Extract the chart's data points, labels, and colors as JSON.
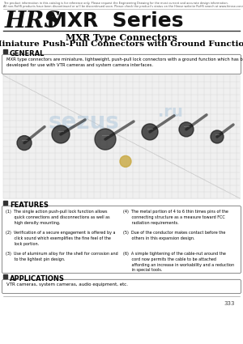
{
  "top_disclaimer_line1": "The product information in this catalog is for reference only. Please request the Engineering Drawing for the most current and accurate design information.",
  "top_disclaimer_line2": "All non-RoHS products have been discontinued or will be discontinued soon. Please check the product's status on the Hirose website RoHS search at www.hirose-connectors.com, or contact your Hirose sales representative.",
  "brand": "HRS",
  "series": "MXR  Series",
  "title1": "MXR Type Connectors",
  "title2": "Miniature Push-Pull Connectors with Ground Function",
  "section_general": "GENERAL",
  "general_text": "MXR type connectors are miniature, lightweight, push-pull lock connectors with a ground function which has been\ndeveloped for use with VTR cameras and system camera interfaces.",
  "section_features": "FEATURES",
  "feat1_1": "(1)  The single action push-pull lock function allows\n       quick connections and disconnections as well as\n       high density mounting.",
  "feat1_2": "(2)  Verification of a secure engagement is offered by a\n       click sound which exemplifies the fine feel of the\n       lock portion.",
  "feat1_3": "(3)  Use of aluminum alloy for the shell for corrosion and\n       to the lightest pin design.",
  "feat2_1": "(4)  The metal portion of 4 to 6 thin times pins of the\n       connecting structure as a measure toward FCC\n       radiation requirements.",
  "feat2_2": "(5)  Due of the conductor makes contact before the\n       others in this expansion design.",
  "feat2_3": "(6)  A simple tightening of the cable-nut around the\n       cord now permits the cable to be attached\n       affording an increase in workability and a reduction\n       in special tools.",
  "section_applications": "APPLICATIONS",
  "applications_text": "VTR cameras, system cameras, audio equipment, etc.",
  "page_number": "333",
  "bg_color": "#ffffff",
  "text_color": "#000000",
  "dark_text": "#111111",
  "gray_text": "#555555",
  "border_color": "#666666",
  "section_bg": "#333333",
  "line_color": "#888888",
  "watermark_blue": "#b0c8dc"
}
